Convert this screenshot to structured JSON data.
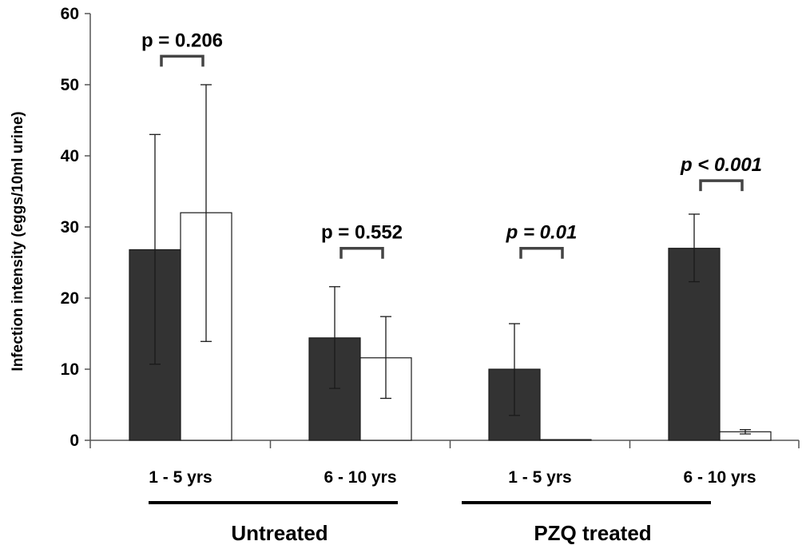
{
  "chart_data": {
    "type": "bar",
    "ylabel": "Infection intensity (eggs/10ml urine)",
    "ylim": [
      0,
      60
    ],
    "yticks": [
      0,
      10,
      20,
      30,
      40,
      50,
      60
    ],
    "categories": [
      "1 - 5 yrs",
      "6 - 10 yrs",
      "1 - 5 yrs",
      "6 - 10 yrs"
    ],
    "groups": [
      {
        "label": "Untreated",
        "categories": [
          0,
          1
        ]
      },
      {
        "label": "PZQ treated",
        "categories": [
          2,
          3
        ]
      }
    ],
    "series": [
      {
        "color": "#333333",
        "values": [
          26.8,
          14.4,
          10.0,
          27.0
        ],
        "error_low": [
          10.7,
          7.3,
          3.5,
          22.3
        ],
        "error_high": [
          43.0,
          21.6,
          16.4,
          31.8
        ]
      },
      {
        "color": "#ffffff",
        "values": [
          32.0,
          11.6,
          0.1,
          1.2
        ],
        "error_low": [
          13.9,
          5.9,
          0.1,
          0.9
        ],
        "error_high": [
          50.0,
          17.4,
          0.1,
          1.5
        ]
      }
    ],
    "annotations": [
      {
        "category": 0,
        "text": "p = 0.206",
        "italic": false,
        "y": 54
      },
      {
        "category": 1,
        "text": "p = 0.552",
        "italic": false,
        "y": 27
      },
      {
        "category": 2,
        "text": "p = 0.01",
        "italic": true,
        "y": 27
      },
      {
        "category": 3,
        "text": "p < 0.001",
        "italic": true,
        "y": 36.5
      }
    ],
    "grid": false
  }
}
